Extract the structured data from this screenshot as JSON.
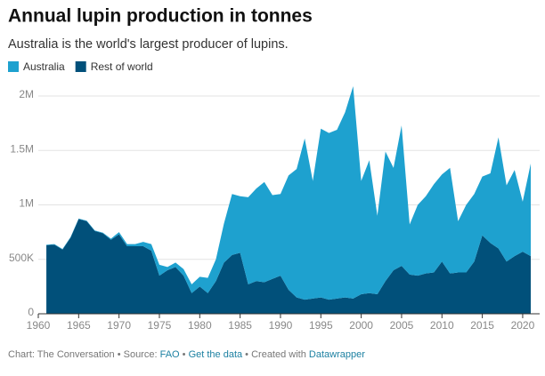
{
  "chart_data": {
    "type": "stacked_area",
    "title": "Annual lupin production in tonnes",
    "subtitle": "Australia is the world's largest producer of lupins.",
    "x": [
      1961,
      1962,
      1963,
      1964,
      1965,
      1966,
      1967,
      1968,
      1969,
      1970,
      1971,
      1972,
      1973,
      1974,
      1975,
      1976,
      1977,
      1978,
      1979,
      1980,
      1981,
      1982,
      1983,
      1984,
      1985,
      1986,
      1987,
      1988,
      1989,
      1990,
      1991,
      1992,
      1993,
      1994,
      1995,
      1996,
      1997,
      1998,
      1999,
      2000,
      2001,
      2002,
      2003,
      2004,
      2005,
      2006,
      2007,
      2008,
      2009,
      2010,
      2011,
      2012,
      2013,
      2014,
      2015,
      2016,
      2017,
      2018,
      2019,
      2020,
      2021
    ],
    "series": [
      {
        "name": "Australia",
        "color": "#1ea1cf",
        "values": [
          5000,
          5000,
          5000,
          5000,
          5000,
          5000,
          5000,
          5000,
          10000,
          20000,
          20000,
          20000,
          40000,
          60000,
          100000,
          30000,
          40000,
          60000,
          80000,
          90000,
          140000,
          200000,
          360000,
          560000,
          520000,
          800000,
          850000,
          920000,
          770000,
          750000,
          1050000,
          1180000,
          1480000,
          1080000,
          1550000,
          1530000,
          1550000,
          1700000,
          1950000,
          1040000,
          1220000,
          720000,
          1190000,
          940000,
          1290000,
          460000,
          650000,
          710000,
          810000,
          800000,
          970000,
          470000,
          620000,
          620000,
          540000,
          640000,
          1020000,
          700000,
          790000,
          460000,
          850000
        ]
      },
      {
        "name": "Rest of world",
        "color": "#01507a",
        "values": [
          630000,
          635000,
          590000,
          700000,
          870000,
          850000,
          760000,
          740000,
          680000,
          730000,
          620000,
          620000,
          620000,
          580000,
          350000,
          400000,
          430000,
          350000,
          190000,
          250000,
          190000,
          300000,
          470000,
          540000,
          560000,
          270000,
          300000,
          290000,
          320000,
          350000,
          220000,
          150000,
          130000,
          140000,
          150000,
          130000,
          140000,
          150000,
          140000,
          180000,
          190000,
          180000,
          300000,
          400000,
          440000,
          360000,
          350000,
          370000,
          380000,
          480000,
          370000,
          380000,
          380000,
          480000,
          720000,
          650000,
          600000,
          480000,
          530000,
          570000,
          530000
        ]
      }
    ],
    "xlim": [
      1960,
      2021
    ],
    "xticks": [
      1960,
      1965,
      1970,
      1975,
      1980,
      1985,
      1990,
      1995,
      2000,
      2005,
      2010,
      2015,
      2020
    ],
    "ylim": [
      0,
      2000000
    ],
    "yticks": [
      0,
      {
        "value": 500000,
        "label": "500K"
      },
      {
        "value": 1000000,
        "label": "1M"
      },
      {
        "value": 1500000,
        "label": "1.5M"
      },
      {
        "value": 2000000,
        "label": "2M"
      }
    ],
    "grid": true
  },
  "footer": {
    "credit": "Chart: The Conversation",
    "source_label": "Source:",
    "source": "FAO",
    "get_data": "Get the data",
    "created": "Created with",
    "tool": "Datawrapper"
  }
}
